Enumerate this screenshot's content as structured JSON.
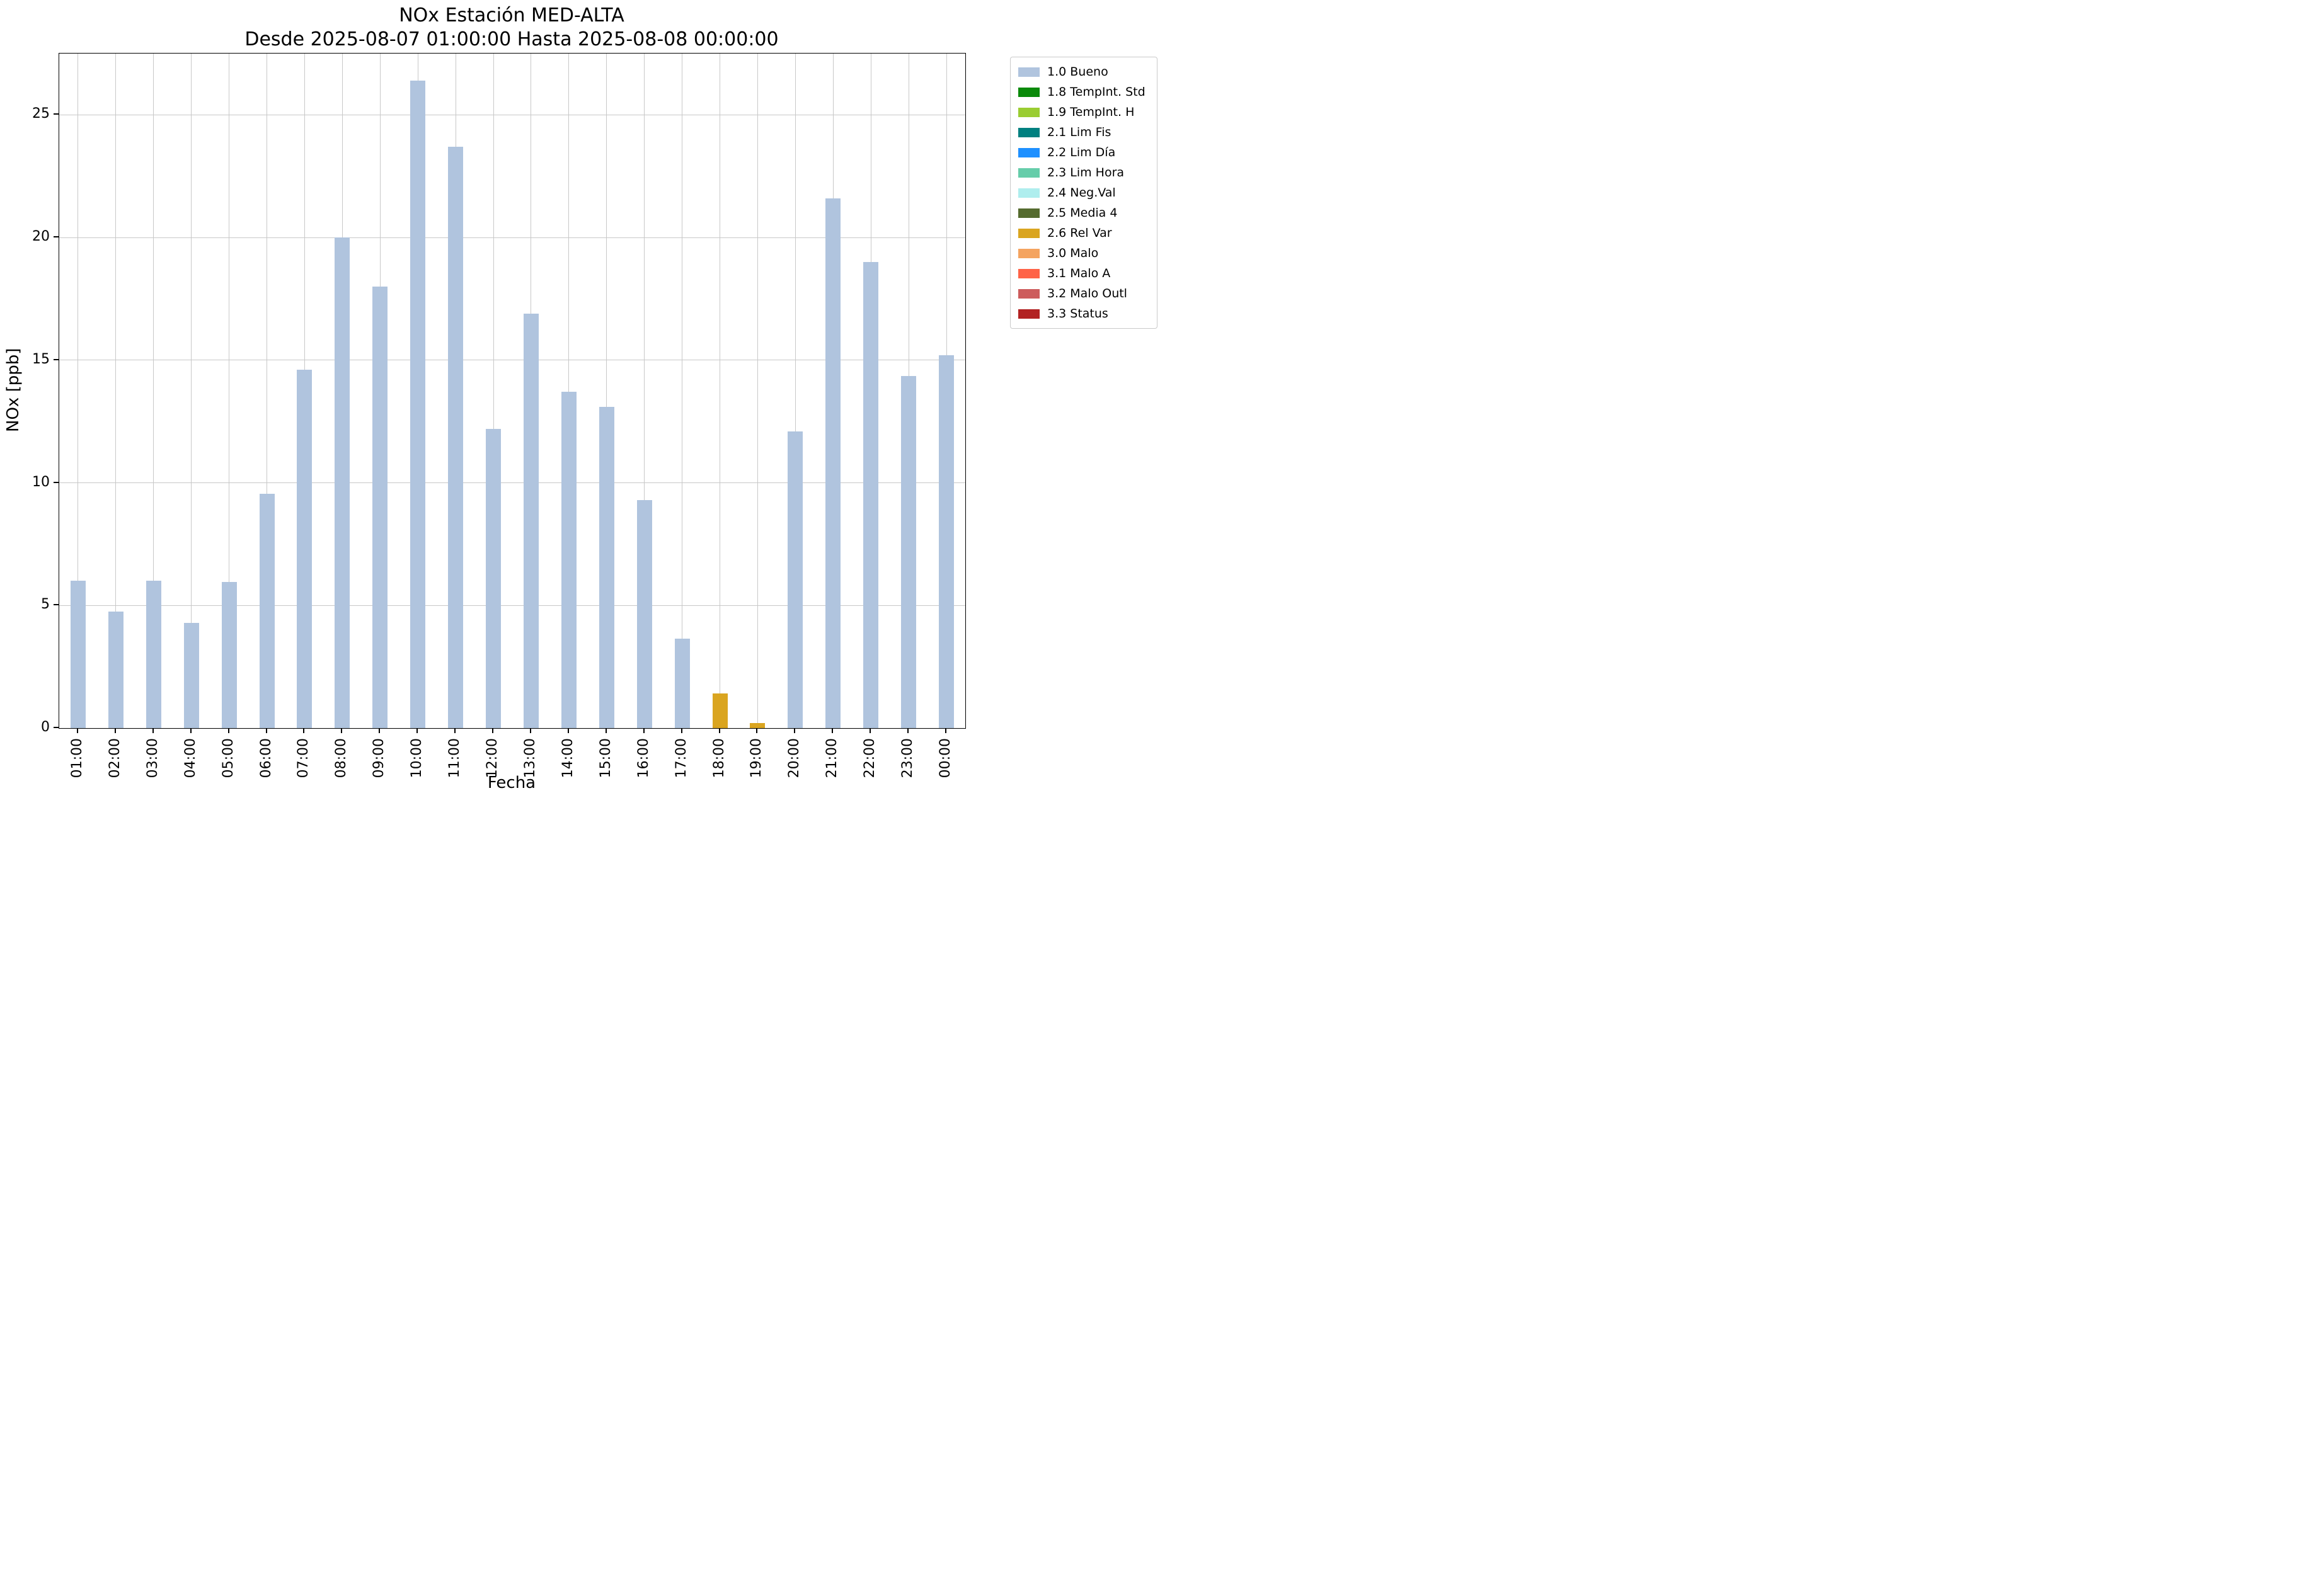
{
  "chart_data": {
    "type": "bar",
    "title": "NOx Estación MED-ALTA",
    "subtitle": "Desde 2025-08-07 01:00:00 Hasta 2025-08-08 00:00:00",
    "xlabel": "Fecha",
    "ylabel": "NOx [ppb]",
    "ylim": [
      0,
      27.5
    ],
    "yticks": [
      0,
      5,
      10,
      15,
      20,
      25
    ],
    "grid": true,
    "background": "#ffffff",
    "categories": [
      "01:00",
      "02:00",
      "03:00",
      "04:00",
      "05:00",
      "06:00",
      "07:00",
      "08:00",
      "09:00",
      "10:00",
      "11:00",
      "12:00",
      "13:00",
      "14:00",
      "15:00",
      "16:00",
      "17:00",
      "18:00",
      "19:00",
      "20:00",
      "21:00",
      "22:00",
      "23:00",
      "00:00"
    ],
    "values": [
      6.0,
      4.75,
      6.0,
      4.3,
      5.95,
      9.55,
      14.6,
      20.0,
      18.0,
      26.4,
      23.7,
      12.2,
      16.9,
      13.7,
      13.1,
      9.3,
      3.65,
      1.4,
      0.2,
      12.1,
      21.6,
      19.0,
      14.35,
      15.2
    ],
    "statuses": [
      "1.0 Bueno",
      "1.0 Bueno",
      "1.0 Bueno",
      "1.0 Bueno",
      "1.0 Bueno",
      "1.0 Bueno",
      "1.0 Bueno",
      "1.0 Bueno",
      "1.0 Bueno",
      "1.0 Bueno",
      "1.0 Bueno",
      "1.0 Bueno",
      "1.0 Bueno",
      "1.0 Bueno",
      "1.0 Bueno",
      "1.0 Bueno",
      "1.0 Bueno",
      "2.6 Rel Var",
      "2.6 Rel Var",
      "1.0 Bueno",
      "1.0 Bueno",
      "1.0 Bueno",
      "1.0 Bueno",
      "1.0 Bueno"
    ],
    "legend": {
      "position": "outside-upper-right",
      "entries": [
        {
          "label": "1.0 Bueno",
          "color": "#b0c4de"
        },
        {
          "label": "1.8 TempInt. Std",
          "color": "#0a8a0a"
        },
        {
          "label": "1.9 TempInt. H",
          "color": "#9acd32"
        },
        {
          "label": "2.1 Lim Fis",
          "color": "#008080"
        },
        {
          "label": "2.2 Lim Día",
          "color": "#1e90ff"
        },
        {
          "label": "2.3 Lim Hora",
          "color": "#66cdaa"
        },
        {
          "label": "2.4 Neg.Val",
          "color": "#afeeee"
        },
        {
          "label": "2.5 Media 4",
          "color": "#556b2f"
        },
        {
          "label": "2.6 Rel Var",
          "color": "#daa520"
        },
        {
          "label": "3.0 Malo",
          "color": "#f4a460"
        },
        {
          "label": "3.1 Malo A",
          "color": "#ff6347"
        },
        {
          "label": "3.2 Malo Outl",
          "color": "#cd5c5c"
        },
        {
          "label": "3.3 Status",
          "color": "#b22222"
        }
      ]
    }
  }
}
